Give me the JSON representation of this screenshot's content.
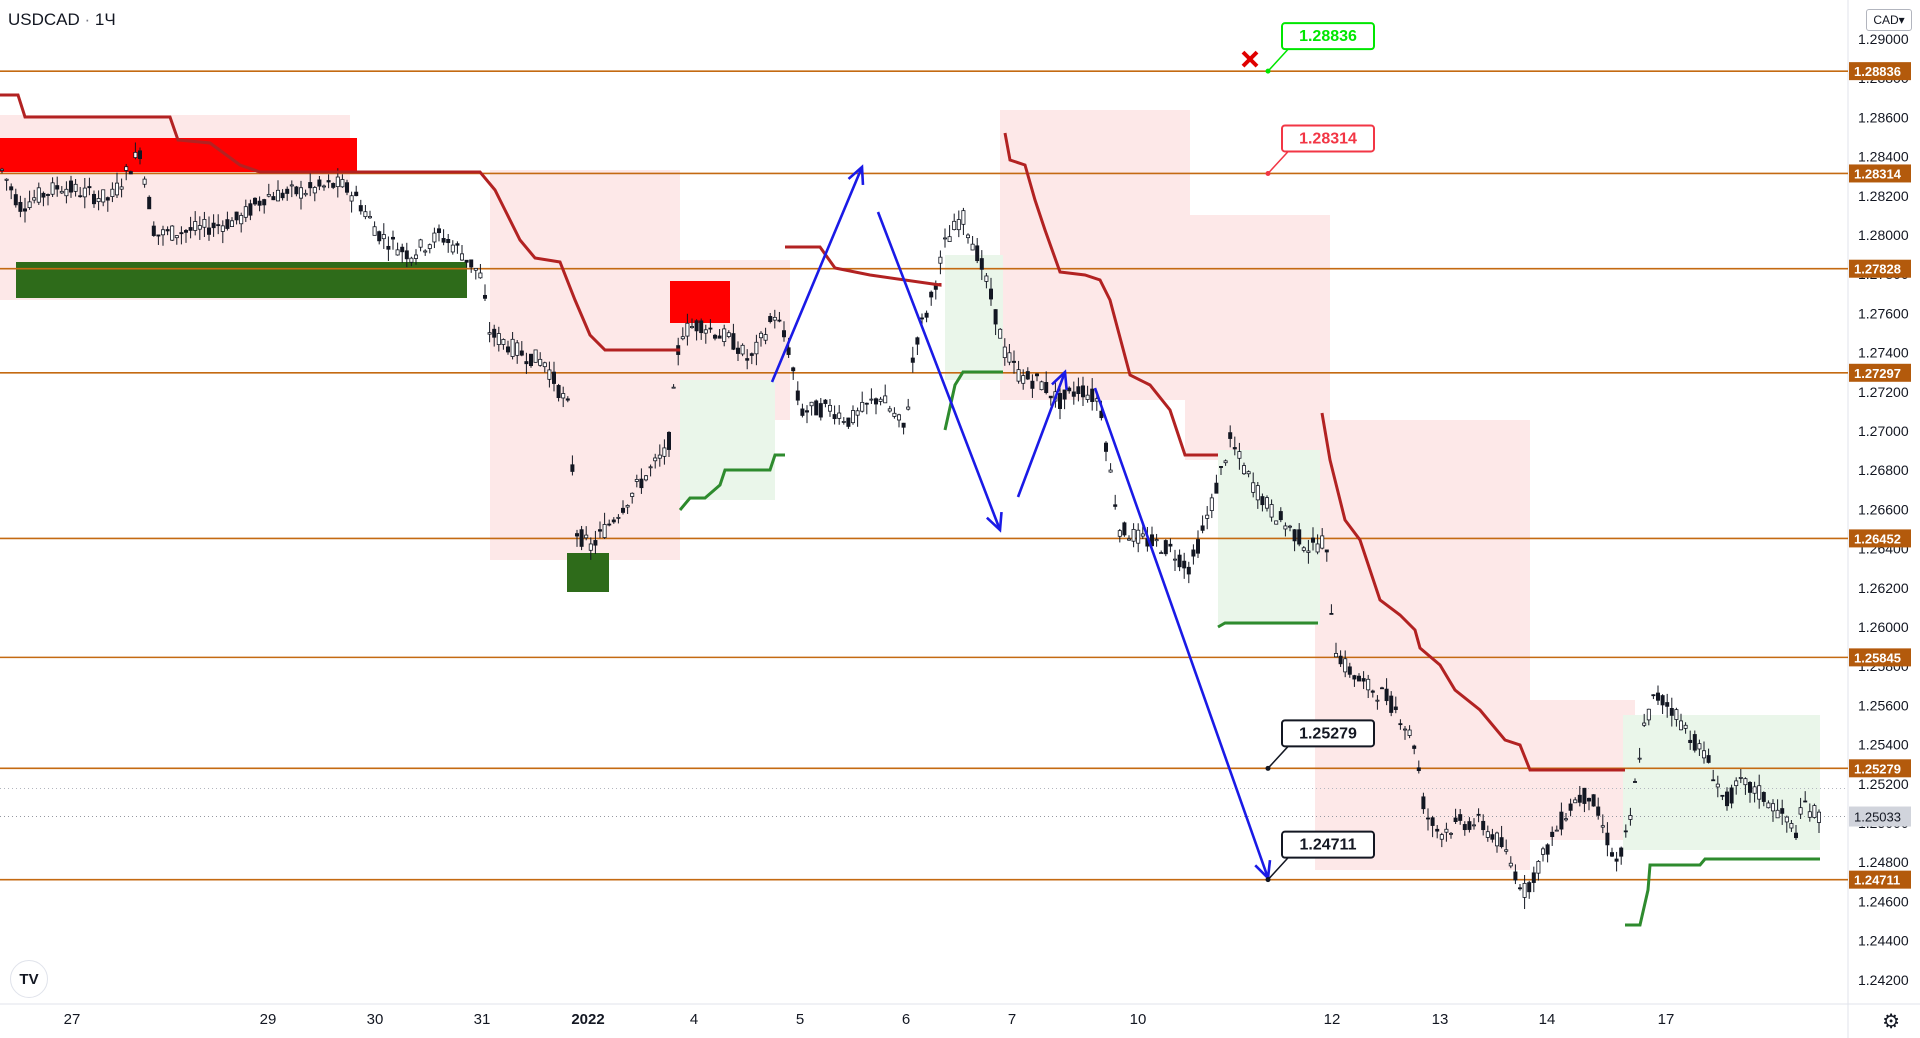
{
  "header": {
    "symbol": "USDCAD",
    "interval": "1Ч",
    "currency": "CAD"
  },
  "chart_data": {
    "type": "candlestick",
    "ylim": [
      1.241,
      1.2915
    ],
    "y_ticks": [
      "1.24200",
      "1.24400",
      "1.24600",
      "1.24800",
      "1.25000",
      "1.25200",
      "1.25400",
      "1.25600",
      "1.25800",
      "1.26000",
      "1.26200",
      "1.26400",
      "1.26600",
      "1.26800",
      "1.27000",
      "1.27200",
      "1.27400",
      "1.27600",
      "1.27800",
      "1.28000",
      "1.28200",
      "1.28400",
      "1.28600",
      "1.28800",
      "1.29000"
    ],
    "x_ticks": [
      "27",
      "29",
      "30",
      "31",
      "2022",
      "4",
      "5",
      "6",
      "7",
      "10",
      "12",
      "13",
      "14",
      "17"
    ],
    "levels": [
      1.28836,
      1.28314,
      1.27828,
      1.27297,
      1.26452,
      1.25845,
      1.25279,
      1.24711
    ],
    "level_labels": [
      "1.28836",
      "1.28314",
      "1.27828",
      "1.27297",
      "1.26452",
      "1.25845",
      "1.25279",
      "1.24711"
    ],
    "current_price": "1.25033",
    "callouts": [
      {
        "text": "1.28836",
        "price": 1.28836,
        "color": "#00e600"
      },
      {
        "text": "1.28314",
        "price": 1.28314,
        "color": "#f23645"
      },
      {
        "text": "1.25279",
        "price": 1.25279,
        "color": "#131722"
      },
      {
        "text": "1.24711",
        "price": 1.24711,
        "color": "#131722"
      }
    ],
    "colors": {
      "level": "#c46a12",
      "trail_red": "#b22222",
      "trail_green": "#2e8b2e",
      "arrow": "#1a1ae6",
      "zone_red": "#ff0000",
      "zone_green": "#2e6b1a"
    }
  }
}
